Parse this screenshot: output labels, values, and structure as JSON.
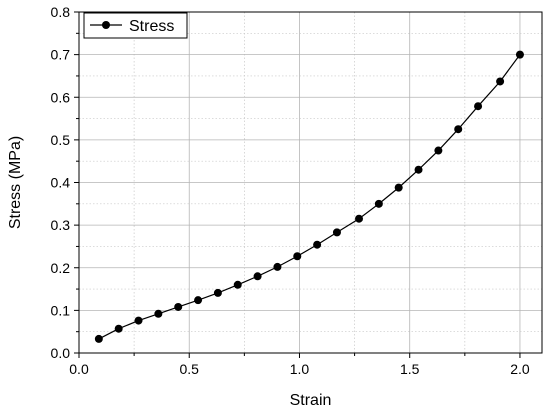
{
  "chart_data": {
    "type": "line",
    "title": "",
    "xlabel": "Strain",
    "ylabel": "Stress (MPa)",
    "xlim": [
      0.0,
      2.1
    ],
    "ylim": [
      0.0,
      0.8
    ],
    "x_ticks": [
      "0.0",
      "0.5",
      "1.0",
      "1.5",
      "2.0"
    ],
    "y_ticks": [
      "0.0",
      "0.1",
      "0.2",
      "0.3",
      "0.4",
      "0.5",
      "0.6",
      "0.7",
      "0.8"
    ],
    "grid": true,
    "legend_position": "top-left",
    "series": [
      {
        "name": "Stress",
        "color": "#000000",
        "marker": "circle",
        "x": [
          0.09,
          0.18,
          0.27,
          0.36,
          0.45,
          0.54,
          0.63,
          0.72,
          0.81,
          0.9,
          0.99,
          1.08,
          1.17,
          1.27,
          1.36,
          1.45,
          1.54,
          1.63,
          1.72,
          1.81,
          1.91,
          2.0
        ],
        "y": [
          0.033,
          0.057,
          0.076,
          0.092,
          0.108,
          0.124,
          0.141,
          0.16,
          0.18,
          0.202,
          0.227,
          0.254,
          0.283,
          0.315,
          0.35,
          0.388,
          0.43,
          0.475,
          0.525,
          0.579,
          0.637,
          0.7
        ]
      }
    ]
  }
}
